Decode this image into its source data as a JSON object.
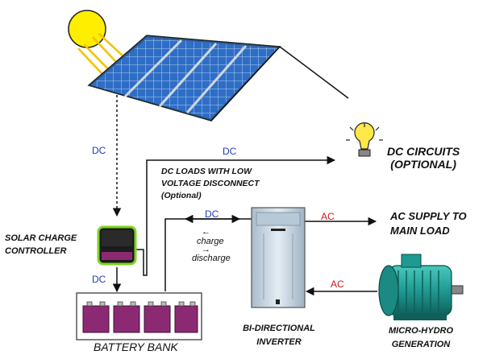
{
  "colors": {
    "dc_label": "#1f3fb0",
    "ac_label": "#d01515",
    "sun": "#ffee00",
    "solar_cell": "#2f6fc8",
    "battery": "#8b2a72",
    "controller_border": "#7ed321",
    "inverter": "#c8d6e2",
    "motor": "#1e9a92"
  },
  "labels": {
    "dc_circuits": "DC CIRCUITS",
    "dc_circuits_sub": "(OPTIONAL)",
    "dc_loads_line1": "DC LOADS WITH LOW",
    "dc_loads_line2": "VOLTAGE DISCONNECT",
    "dc_loads_line3": "(Optional)",
    "solar_charge_line1": "SOLAR CHARGE",
    "solar_charge_line2": "CONTROLLER",
    "ac_supply_line1": "AC SUPPLY TO",
    "ac_supply_line2": "MAIN LOAD",
    "battery_bank": "BATTERY BANK",
    "inverter_line1": "BI-DIRECTIONAL",
    "inverter_line2": "INVERTER",
    "hydro_line1": "MICRO-HYDRO",
    "hydro_line2": "GENERATION"
  },
  "wires": {
    "dc_panel": "DC",
    "dc_top": "DC",
    "dc_controller": "DC",
    "dc_inverter": "DC",
    "ac_out": "AC",
    "ac_in": "AC",
    "charge": "charge",
    "discharge": "discharge",
    "arrow_left": "←",
    "arrow_right": "→"
  },
  "icons": {
    "sun": "sun-icon",
    "solar_panel": "solar-panel-icon",
    "bulb": "light-bulb-icon",
    "controller": "charge-controller-icon",
    "battery": "battery-icon",
    "inverter": "inverter-icon",
    "motor": "motor-generator-icon"
  }
}
